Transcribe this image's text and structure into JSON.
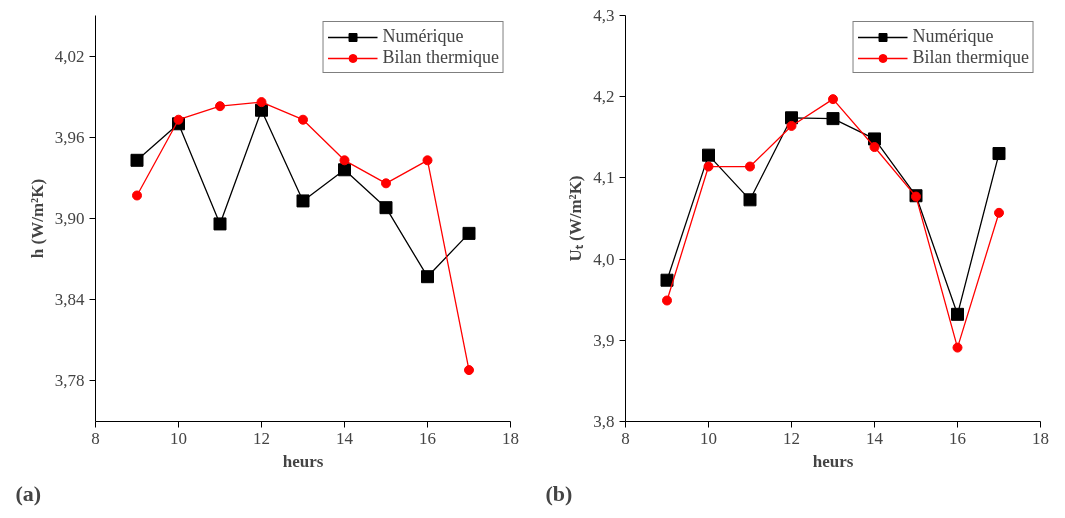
{
  "chart_data": [
    {
      "type": "line",
      "xlabel": "heurs",
      "ylabel": "h (W/m²K)",
      "annotations": [
        "(a)"
      ],
      "x": [
        9,
        10,
        11,
        12,
        13,
        14,
        15,
        16,
        17
      ],
      "xlim": [
        8,
        18
      ],
      "xticks": [
        8,
        10,
        12,
        14,
        16,
        18
      ],
      "ylim": [
        3.75,
        4.05
      ],
      "yticks": [
        {
          "value": 3.78,
          "label": "3,78"
        },
        {
          "value": 3.84,
          "label": "3,84"
        },
        {
          "value": 3.9,
          "label": "3,90"
        },
        {
          "value": 3.96,
          "label": "3,96"
        },
        {
          "value": 4.02,
          "label": "4,02"
        }
      ],
      "grid": false,
      "legend": "top right",
      "line_style": "solid",
      "series": [
        {
          "name": "Numérique",
          "color": "#000000",
          "marker": "square",
          "values": [
            3.943,
            3.97,
            3.896,
            3.98,
            3.913,
            3.936,
            3.908,
            3.857,
            3.889
          ]
        },
        {
          "name": "Bilan thermique",
          "color": "#ff0000",
          "marker": "circle",
          "values": [
            3.917,
            3.973,
            3.983,
            3.986,
            3.973,
            3.943,
            3.926,
            3.943,
            3.788
          ]
        }
      ]
    },
    {
      "type": "line",
      "xlabel": "heurs",
      "ylabel": "Uₜ (W/m²K)",
      "annotations": [
        "(b)"
      ],
      "x": [
        9,
        10,
        11,
        12,
        13,
        14,
        15,
        16,
        17
      ],
      "xlim": [
        8,
        18
      ],
      "xticks": [
        8,
        10,
        12,
        14,
        16,
        18
      ],
      "ylim": [
        3.8,
        4.3
      ],
      "yticks": [
        {
          "value": 3.8,
          "label": "3,8"
        },
        {
          "value": 3.9,
          "label": "3,9"
        },
        {
          "value": 4.0,
          "label": "4,0"
        },
        {
          "value": 4.1,
          "label": "4,1"
        },
        {
          "value": 4.2,
          "label": "4,2"
        },
        {
          "value": 4.3,
          "label": "4,3"
        }
      ],
      "grid": false,
      "legend": "top right",
      "line_style": "solid",
      "series": [
        {
          "name": "Numérique",
          "color": "#000000",
          "marker": "square",
          "values": [
            3.974,
            4.128,
            4.073,
            4.174,
            4.173,
            4.148,
            4.078,
            3.932,
            4.13
          ]
        },
        {
          "name": "Bilan thermique",
          "color": "#ff0000",
          "marker": "circle",
          "values": [
            3.949,
            4.114,
            4.114,
            4.164,
            4.197,
            4.138,
            4.077,
            3.891,
            4.057
          ]
        }
      ]
    }
  ]
}
